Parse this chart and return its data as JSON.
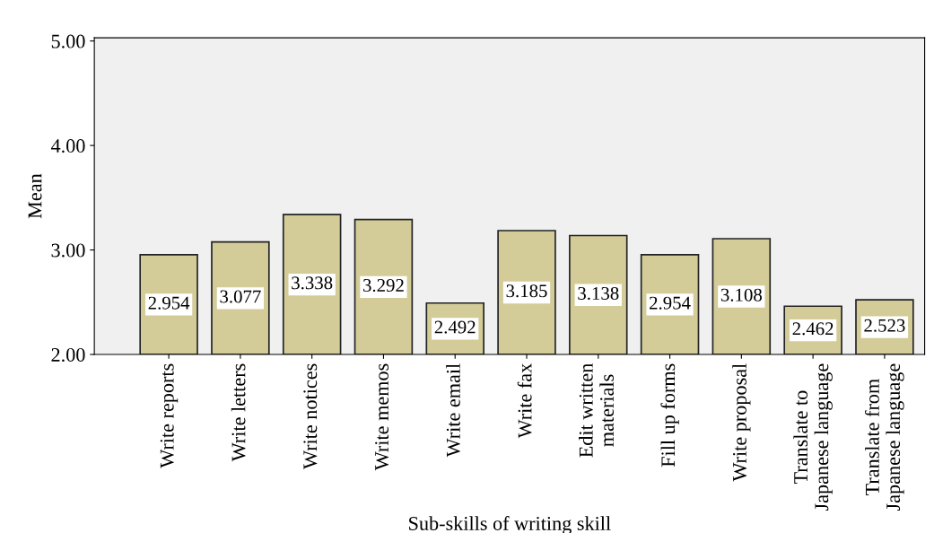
{
  "chart_data": {
    "type": "bar",
    "xlabel": "Sub-skills of writing skill",
    "ylabel": "Mean",
    "categories": [
      "Write reports",
      "Write letters",
      "Write notices",
      "Write memos",
      "Write email",
      "Write fax",
      "Edit written\nmaterials",
      "Fill up forms",
      "Write proposal",
      "Translate to\nJapanese language",
      "Translate from\nJapanese language"
    ],
    "values": [
      2.954,
      3.077,
      3.338,
      3.292,
      2.492,
      3.185,
      3.138,
      2.954,
      3.108,
      2.462,
      2.523
    ],
    "color": "#d3cc98",
    "data_labels": true,
    "grid": false,
    "legend": false,
    "ylim": [
      2,
      5.03
    ],
    "yticks": [
      {
        "value": 2,
        "label": "2.00"
      },
      {
        "value": 3,
        "label": "3.00"
      },
      {
        "value": 4,
        "label": "4.00"
      },
      {
        "value": 5,
        "label": "5.00"
      }
    ]
  }
}
